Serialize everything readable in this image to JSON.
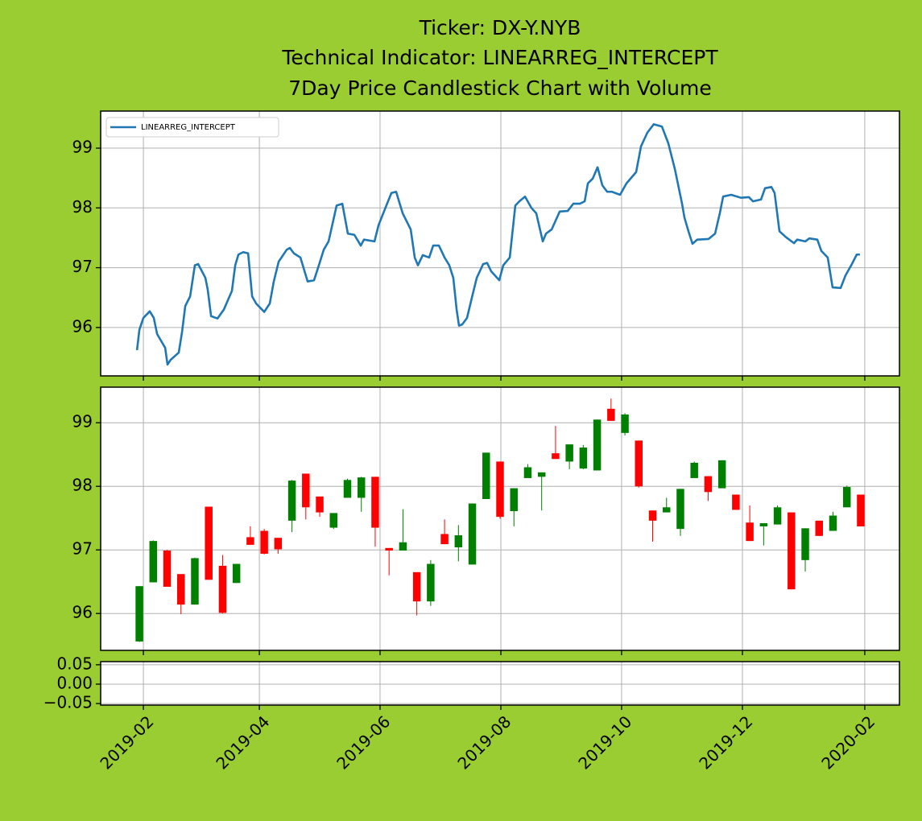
{
  "chart_data": [
    {
      "type": "line",
      "title": [
        "Ticker: DX-Y.NYB",
        "Technical Indicator: LINEARREG_INTERCEPT",
        "7Day Price Candlestick Chart with Volume"
      ],
      "xlim": [
        -2.79,
        54.79
      ],
      "ylim": [
        95.19,
        99.62
      ],
      "yticks": [
        96,
        97,
        98,
        99
      ],
      "grid": true,
      "legend": "upper left",
      "series": [
        {
          "name": "LINEARREG_INTERCEPT",
          "color": "#1f77b4",
          "x": [
            -0.17,
            0,
            0.29,
            0.75,
            1.04,
            1.28,
            1.86,
            2.03,
            2.26,
            2.84,
            3.08,
            3.31,
            3.66,
            4.0,
            4.24,
            4.76,
            4.93,
            5.17,
            5.63,
            6.09,
            6.67,
            6.91,
            7.14,
            7.49,
            7.84,
            8.13,
            8.42,
            9.0,
            9.4,
            9.69,
            10.04,
            10.62,
            10.85,
            11.14,
            11.61,
            12.13,
            12.59,
            12.94,
            13.29,
            13.64,
            14.22,
            14.63,
            15.03,
            15.5,
            15.96,
            16.19,
            16.95,
            17.24,
            17.7,
            18.17,
            18.51,
            18.98,
            19.56,
            19.85,
            20.08,
            20.43,
            20.89,
            21.18,
            21.59,
            22.0,
            22.34,
            22.63,
            22.87,
            23.04,
            23.27,
            23.62,
            23.97,
            24.32,
            24.78,
            25.07,
            25.36,
            25.94,
            26.23,
            26.7,
            27.1,
            27.39,
            27.8,
            28.26,
            28.61,
            29.08,
            29.31,
            29.72,
            30.3,
            30.88,
            31.28,
            31.75,
            32.1,
            32.33,
            32.68,
            33.03,
            33.37,
            33.72,
            34.07,
            34.65,
            35.11,
            35.81,
            36.16,
            36.62,
            37.08,
            37.67,
            38.13,
            38.6,
            39.12,
            39.29,
            39.58,
            39.87,
            40.22,
            41.03,
            41.5,
            41.85,
            42.08,
            42.66,
            43.36,
            43.94,
            44.23,
            44.81,
            45.1,
            45.56,
            45.79,
            46.14,
            46.61,
            47.19,
            47.42,
            48.0,
            48.29,
            48.87,
            49.16,
            49.62,
            49.97,
            50.55,
            50.9,
            51.36,
            51.71,
            51.94
          ],
          "values": [
            95.62,
            95.96,
            96.16,
            96.27,
            96.16,
            95.89,
            95.66,
            95.38,
            95.46,
            95.58,
            95.93,
            96.36,
            96.52,
            97.04,
            97.06,
            96.83,
            96.63,
            96.19,
            96.15,
            96.3,
            96.61,
            97.04,
            97.22,
            97.26,
            97.24,
            96.52,
            96.4,
            96.26,
            96.4,
            96.77,
            97.1,
            97.3,
            97.33,
            97.24,
            97.17,
            96.77,
            96.79,
            97.04,
            97.3,
            97.44,
            98.04,
            98.07,
            97.57,
            97.55,
            97.37,
            97.47,
            97.44,
            97.71,
            97.98,
            98.25,
            98.27,
            97.91,
            97.64,
            97.17,
            97.04,
            97.21,
            97.17,
            97.37,
            97.37,
            97.17,
            97.04,
            96.83,
            96.3,
            96.03,
            96.05,
            96.16,
            96.5,
            96.83,
            97.06,
            97.08,
            96.94,
            96.79,
            97.04,
            97.17,
            98.04,
            98.11,
            98.19,
            98.0,
            97.91,
            97.44,
            97.57,
            97.64,
            97.94,
            97.95,
            98.07,
            98.07,
            98.11,
            98.41,
            98.49,
            98.68,
            98.38,
            98.27,
            98.27,
            98.22,
            98.41,
            98.6,
            99.03,
            99.26,
            99.4,
            99.36,
            99.08,
            98.65,
            98.07,
            97.84,
            97.61,
            97.4,
            97.47,
            97.48,
            97.57,
            97.92,
            98.19,
            98.22,
            98.17,
            98.18,
            98.11,
            98.14,
            98.33,
            98.35,
            98.25,
            97.61,
            97.51,
            97.41,
            97.47,
            97.44,
            97.49,
            97.47,
            97.28,
            97.17,
            96.67,
            96.66,
            96.87,
            97.06,
            97.22,
            97.22
          ]
        }
      ]
    },
    {
      "type": "candlestick",
      "xlim": [
        -2.79,
        54.79
      ],
      "ylim": [
        95.42,
        99.56
      ],
      "yticks": [
        96,
        97,
        98,
        99
      ],
      "grid": true,
      "up_color": "#008000",
      "down_color": "#ff0000",
      "open": [
        95.56,
        96.49,
        96.99,
        96.62,
        96.14,
        97.68,
        96.75,
        96.48,
        97.2,
        97.3,
        97.19,
        97.46,
        98.2,
        97.84,
        97.35,
        97.82,
        97.82,
        98.15,
        97.03,
        96.99,
        96.65,
        96.19,
        97.25,
        97.04,
        96.77,
        97.8,
        98.39,
        97.61,
        98.13,
        98.15,
        98.52,
        98.39,
        98.28,
        98.25,
        99.22,
        98.84,
        98.72,
        97.62,
        97.59,
        97.33,
        98.13,
        98.16,
        97.97,
        97.87,
        97.43,
        97.37,
        97.4,
        97.59,
        96.84,
        97.46,
        97.3,
        97.67,
        97.87
      ],
      "high": [
        96.43,
        97.15,
        97.0,
        96.62,
        96.88,
        97.68,
        96.92,
        96.78,
        97.37,
        97.33,
        97.19,
        98.1,
        98.2,
        97.84,
        97.58,
        98.12,
        98.15,
        98.15,
        97.03,
        97.64,
        96.65,
        96.84,
        97.48,
        97.39,
        97.73,
        98.53,
        98.39,
        97.97,
        98.35,
        98.22,
        98.95,
        98.66,
        98.65,
        99.05,
        99.38,
        99.15,
        98.72,
        97.62,
        97.82,
        97.96,
        98.39,
        98.16,
        98.41,
        97.87,
        97.7,
        97.42,
        97.7,
        97.59,
        97.34,
        97.46,
        97.6,
        98.01,
        97.87
      ],
      "low": [
        95.55,
        96.49,
        96.42,
        95.99,
        96.14,
        96.53,
        96.0,
        96.48,
        97.08,
        96.93,
        96.94,
        97.28,
        97.48,
        97.52,
        97.33,
        97.82,
        97.6,
        97.05,
        96.6,
        96.99,
        95.97,
        96.12,
        97.09,
        96.82,
        96.77,
        97.8,
        97.49,
        97.37,
        98.13,
        97.62,
        98.43,
        98.27,
        98.27,
        98.25,
        99.03,
        98.8,
        97.98,
        97.13,
        97.59,
        97.22,
        98.13,
        97.77,
        97.97,
        97.63,
        97.14,
        97.07,
        97.4,
        96.38,
        96.66,
        97.22,
        97.3,
        97.67,
        97.37
      ],
      "close": [
        96.43,
        97.14,
        96.42,
        96.14,
        96.87,
        96.53,
        96.01,
        96.78,
        97.08,
        96.94,
        97.01,
        98.09,
        97.67,
        97.59,
        97.58,
        98.1,
        98.14,
        97.35,
        96.99,
        97.12,
        96.19,
        96.78,
        97.09,
        97.23,
        97.73,
        98.53,
        97.52,
        97.97,
        98.3,
        98.22,
        98.43,
        98.66,
        98.61,
        99.05,
        99.03,
        99.13,
        98.0,
        97.46,
        97.67,
        97.96,
        98.37,
        97.91,
        98.41,
        97.63,
        97.14,
        97.42,
        97.67,
        96.38,
        97.34,
        97.22,
        97.54,
        97.99,
        97.37
      ]
    },
    {
      "type": "bar",
      "xlim": [
        -2.79,
        54.79
      ],
      "ylim": [
        -0.054,
        0.058
      ],
      "grid": true,
      "yticks": [
        0.05,
        {
          "value": 0,
          "label": "0.00"
        },
        {
          "value": -0.05,
          "label": "−0.05"
        }
      ],
      "xticks": [
        {
          "value": 0.29,
          "label": "2019-02"
        },
        {
          "value": 8.65,
          "label": "2019-04"
        },
        {
          "value": 17.35,
          "label": "2019-06"
        },
        {
          "value": 26.06,
          "label": "2019-08"
        },
        {
          "value": 34.76,
          "label": "2019-10"
        },
        {
          "value": 43.47,
          "label": "2019-12"
        },
        {
          "value": 52.29,
          "label": "2020-02"
        }
      ]
    }
  ]
}
